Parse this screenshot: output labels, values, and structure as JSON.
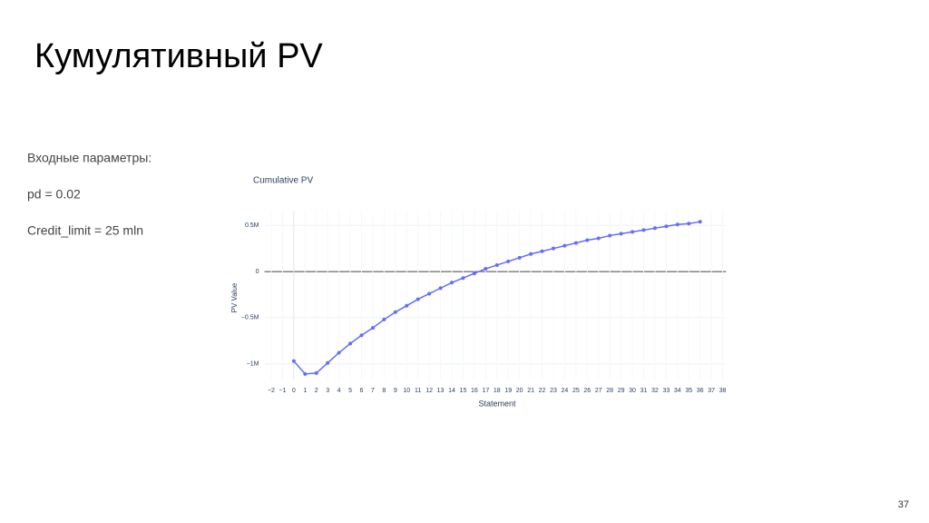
{
  "slide": {
    "title": "Кумулятивный PV",
    "params_heading": "Входные параметры:",
    "params": [
      "pd = 0.02",
      "Credit_limit = 25 mln"
    ],
    "page_number": "37"
  },
  "chart_data": {
    "type": "line",
    "title": "Cumulative PV",
    "x_label": "Statement",
    "y_label": "PV Value",
    "x": [
      0,
      1,
      2,
      3,
      4,
      5,
      6,
      7,
      8,
      9,
      10,
      11,
      12,
      13,
      14,
      15,
      16,
      17,
      18,
      19,
      20,
      21,
      22,
      23,
      24,
      25,
      26,
      27,
      28,
      29,
      30,
      31,
      32,
      33,
      34,
      35,
      36
    ],
    "values": [
      -970000,
      -1110000,
      -1100000,
      -990000,
      -880000,
      -780000,
      -690000,
      -610000,
      -520000,
      -440000,
      -370000,
      -300000,
      -240000,
      -180000,
      -120000,
      -70000,
      -20000,
      30000,
      70000,
      110000,
      150000,
      190000,
      220000,
      250000,
      280000,
      310000,
      340000,
      360000,
      390000,
      410000,
      430000,
      450000,
      470000,
      490000,
      510000,
      520000,
      540000
    ],
    "color": "#636efa",
    "xlim": [
      -2.6,
      38.3
    ],
    "xticks": [
      {
        "value": -2,
        "label": "−2"
      },
      {
        "value": -1,
        "label": "−1"
      },
      0,
      1,
      2,
      3,
      4,
      5,
      6,
      7,
      8,
      9,
      10,
      11,
      12,
      13,
      14,
      15,
      16,
      17,
      18,
      19,
      20,
      21,
      22,
      23,
      24,
      25,
      26,
      27,
      28,
      29,
      30,
      31,
      32,
      33,
      34,
      35,
      36,
      37,
      38
    ],
    "ylim": [
      -1170000,
      660000
    ],
    "yticks": [
      {
        "value": -1000000,
        "label": "−1M"
      },
      {
        "value": -500000,
        "label": "−0.5M"
      },
      0,
      {
        "value": 500000,
        "label": "0.5M"
      }
    ],
    "grid": true
  }
}
